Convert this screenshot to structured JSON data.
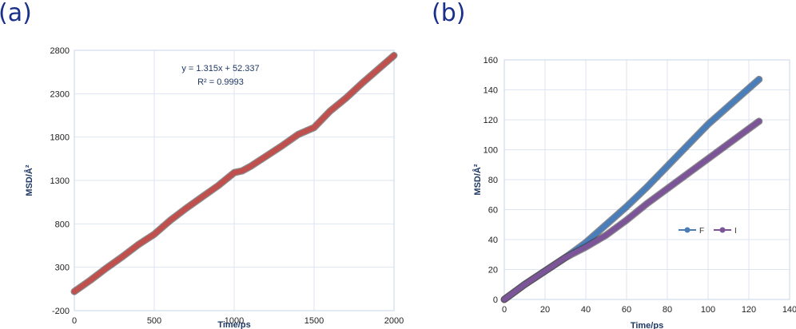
{
  "chart_data": [
    {
      "panel_label": "(a)",
      "type": "line",
      "xlabel": "Time/ps",
      "ylabel": "MSD/Å²",
      "xlim": [
        0,
        2000
      ],
      "ylim": [
        -200,
        2800
      ],
      "xticks": [
        0,
        500,
        1000,
        1500,
        2000
      ],
      "yticks": [
        -200,
        300,
        800,
        1300,
        1800,
        2300,
        2800
      ],
      "grid": true,
      "annotation": [
        "y = 1.315x + 52.337",
        "R² = 0.9993"
      ],
      "series": [
        {
          "color": "#c0504d",
          "x": [
            0,
            100,
            200,
            300,
            400,
            500,
            600,
            700,
            800,
            900,
            1000,
            1050,
            1100,
            1200,
            1300,
            1400,
            1500,
            1600,
            1700,
            1800,
            1900,
            2000
          ],
          "y": [
            20,
            150,
            290,
            420,
            560,
            680,
            840,
            980,
            1110,
            1240,
            1390,
            1410,
            1460,
            1580,
            1700,
            1830,
            1910,
            2100,
            2250,
            2420,
            2580,
            2740
          ]
        }
      ]
    },
    {
      "panel_label": "(b)",
      "type": "line",
      "xlabel": "Time/ps",
      "ylabel": "MSD/Å²",
      "xlim": [
        0,
        140
      ],
      "ylim": [
        0,
        160
      ],
      "xticks": [
        0,
        20,
        40,
        60,
        80,
        100,
        120,
        140
      ],
      "yticks": [
        0,
        20,
        40,
        60,
        80,
        100,
        120,
        140,
        160
      ],
      "grid": true,
      "legend": "center-right",
      "series": [
        {
          "name": "F",
          "color": "#4a7ebb",
          "x": [
            0,
            10,
            20,
            30,
            40,
            50,
            60,
            70,
            80,
            90,
            100,
            110,
            120,
            125
          ],
          "y": [
            0,
            10,
            19,
            28,
            38,
            50,
            62,
            75,
            89,
            103,
            117,
            129,
            141,
            147
          ]
        },
        {
          "name": "I",
          "color": "#7b5597",
          "x": [
            0,
            10,
            20,
            30,
            40,
            50,
            60,
            70,
            80,
            90,
            100,
            110,
            120,
            125
          ],
          "y": [
            0,
            10,
            19,
            28,
            35,
            43,
            53,
            64,
            74,
            84,
            94,
            104,
            114,
            119
          ]
        }
      ]
    }
  ]
}
